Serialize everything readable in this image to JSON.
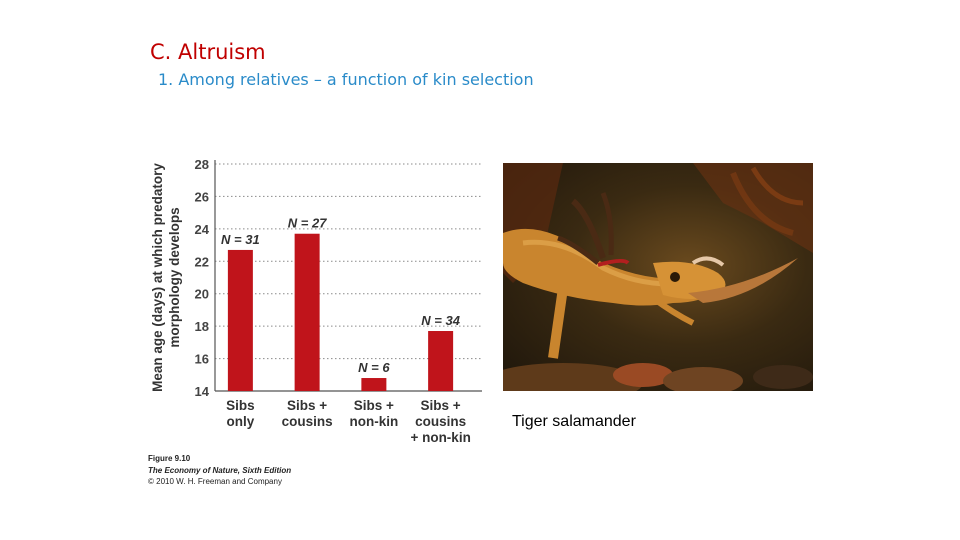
{
  "slide": {
    "title": "C. Altruism",
    "subtitle": "1. Among relatives – a function of kin selection"
  },
  "chart_data": {
    "type": "bar",
    "ylabel": "Mean age (days) at which predatory morphology develops",
    "ylim": [
      14,
      28
    ],
    "yticks": [
      14,
      16,
      18,
      20,
      22,
      24,
      26,
      28
    ],
    "grid": true,
    "categories": [
      [
        "Sibs",
        "only"
      ],
      [
        "Sibs +",
        "cousins"
      ],
      [
        "Sibs +",
        "non-kin"
      ],
      [
        "Sibs +",
        "cousins",
        "+ non-kin"
      ]
    ],
    "values": [
      22.7,
      23.7,
      14.8,
      17.7
    ],
    "sample_labels": [
      "N = 31",
      "N = 27",
      "N = 6",
      "N = 34"
    ],
    "bar_color": "#c0141b"
  },
  "photo": {
    "caption": "Tiger salamander",
    "subject-icon": "salamander-photo"
  },
  "figure_credit": {
    "number": "Figure 9.10",
    "book": "The Economy of Nature, Sixth Edition",
    "copyright": "© 2010 W. H. Freeman and Company"
  }
}
